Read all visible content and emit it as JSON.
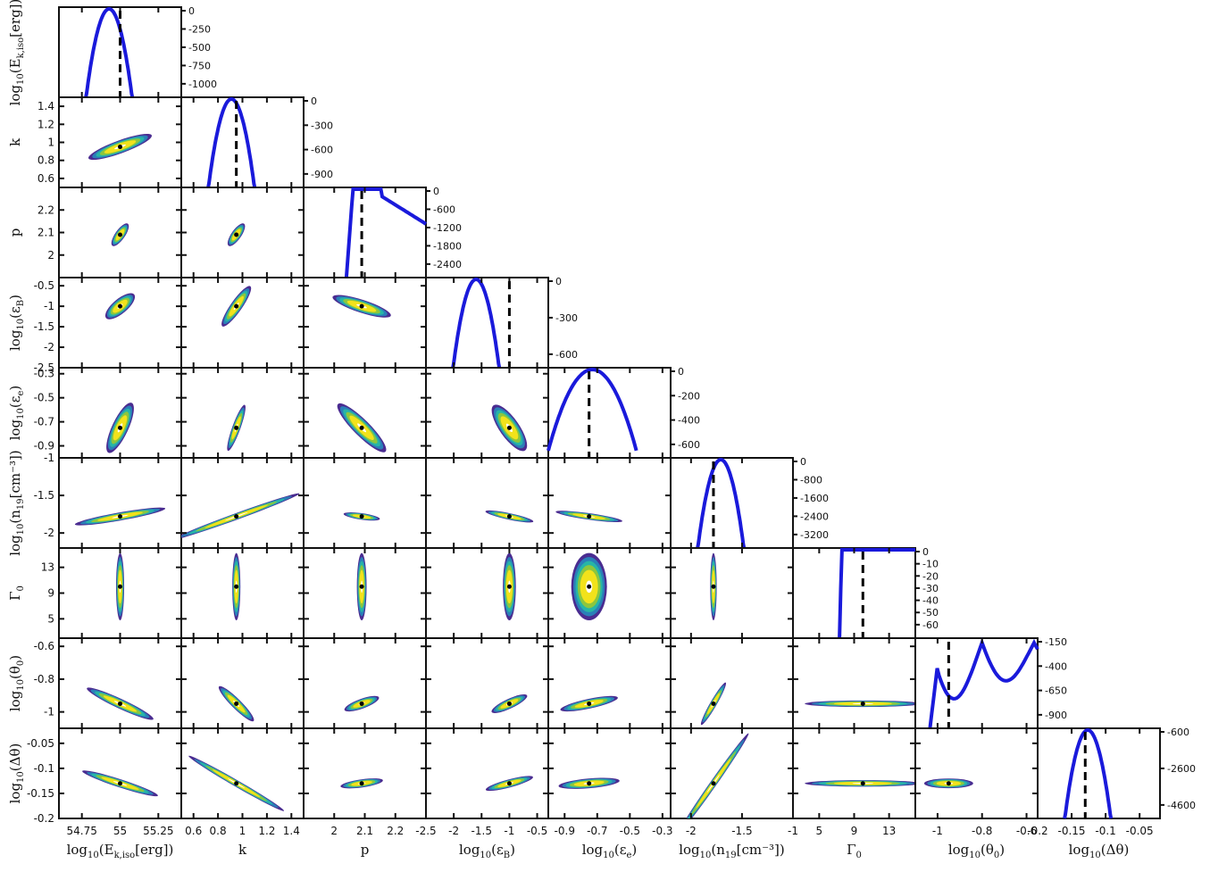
{
  "chart_data": {
    "type": "corner",
    "params": [
      {
        "name": "log10(E_k,iso[erg])",
        "label_main": "log",
        "label_sub": "10",
        "label_rest": "(E",
        "label_tail": "k,iso",
        "label_end": "[erg])",
        "range": [
          54.6,
          55.4
        ],
        "ticks": [
          "54.75",
          "55",
          "55.25"
        ],
        "tick_values": [
          54.75,
          55,
          55.25
        ],
        "best": 55.0,
        "loglike_ticks": [
          "0",
          "-250",
          "-500",
          "-750",
          "-1000"
        ]
      },
      {
        "name": "k",
        "label_main": "k",
        "range": [
          0.5,
          1.5
        ],
        "ticks": [
          "0.6",
          "0.8",
          "1",
          "1.2",
          "1.4"
        ],
        "tick_values": [
          0.6,
          0.8,
          1,
          1.2,
          1.4
        ],
        "best": 0.95,
        "loglike_ticks": [
          "0",
          "-300",
          "-600",
          "-900"
        ]
      },
      {
        "name": "p",
        "label_main": "p",
        "range": [
          1.9,
          2.3
        ],
        "ticks": [
          "2",
          "2.1",
          "2.2"
        ],
        "tick_values": [
          2,
          2.1,
          2.2
        ],
        "best": 2.09,
        "loglike_ticks": [
          "0",
          "-600",
          "-1200",
          "-1800",
          "-2400"
        ]
      },
      {
        "name": "log10(eps_B)",
        "label_main": "log",
        "label_sub": "10",
        "label_rest": "(ε",
        "label_tail": "B",
        "label_end": ")",
        "range": [
          -2.5,
          -0.3
        ],
        "ticks": [
          "-2.5",
          "-2",
          "-1.5",
          "-1",
          "-0.5"
        ],
        "tick_values": [
          -2.5,
          -2,
          -1.5,
          -1,
          -0.5
        ],
        "best": -1.0,
        "loglike_ticks": [
          "0",
          "-300",
          "-600"
        ]
      },
      {
        "name": "log10(eps_e)",
        "label_main": "log",
        "label_sub": "10",
        "label_rest": "(ε",
        "label_tail": "e",
        "label_end": ")",
        "range": [
          -1.0,
          -0.25
        ],
        "ticks": [
          "-0.9",
          "-0.7",
          "-0.5",
          "-0.3"
        ],
        "tick_values": [
          -0.9,
          -0.7,
          -0.5,
          -0.3
        ],
        "best": -0.75,
        "loglike_ticks": [
          "0",
          "-200",
          "-400",
          "-600"
        ]
      },
      {
        "name": "log10(n19[cm^-3])",
        "label_main": "log",
        "label_sub": "10",
        "label_rest": "(n",
        "label_tail": "19",
        "label_end": "[cm⁻³])",
        "range": [
          -2.2,
          -1.0
        ],
        "ticks": [
          "-2",
          "-1.5",
          "-1"
        ],
        "tick_values": [
          -2,
          -1.5,
          -1
        ],
        "best": -1.78,
        "loglike_ticks": [
          "0",
          "-800",
          "-1600",
          "-2400",
          "-3200"
        ]
      },
      {
        "name": "Gamma_0",
        "label_main": "Γ",
        "label_tail": "0",
        "range": [
          2,
          16
        ],
        "ticks": [
          "5",
          "9",
          "13"
        ],
        "tick_values": [
          5,
          9,
          13
        ],
        "best": 10,
        "loglike_ticks": [
          "0",
          "-10",
          "-20",
          "-30",
          "-40",
          "-50",
          "-60"
        ]
      },
      {
        "name": "log10(theta_0)",
        "label_main": "log",
        "label_sub": "10",
        "label_rest": "(θ",
        "label_tail": "0",
        "label_end": ")",
        "range": [
          -1.1,
          -0.55
        ],
        "ticks": [
          "-1",
          "-0.8",
          "-0.6"
        ],
        "tick_values": [
          -1,
          -0.8,
          -0.6
        ],
        "best": -0.95,
        "loglike_ticks": [
          "-150",
          "-400",
          "-650",
          "-900"
        ]
      },
      {
        "name": "log10(Delta theta)",
        "label_main": "log",
        "label_sub": "10",
        "label_rest": "(Δθ)",
        "range": [
          -0.2,
          -0.02
        ],
        "ticks": [
          "-0.2",
          "-0.15",
          "-0.1",
          "-0.05"
        ],
        "tick_values": [
          -0.2,
          -0.15,
          -0.1,
          -0.05
        ],
        "best": -0.13,
        "loglike_ticks": [
          "-600",
          "-2600",
          "-4600"
        ]
      }
    ],
    "colors": {
      "outer": "#4a2c91",
      "mid1": "#2a7fb8",
      "mid2": "#27b5a6",
      "inner1": "#8cc63f",
      "inner2": "#f2e21b",
      "core": "#ffffff",
      "curve": "#1a1adb",
      "best": "#000000"
    }
  }
}
